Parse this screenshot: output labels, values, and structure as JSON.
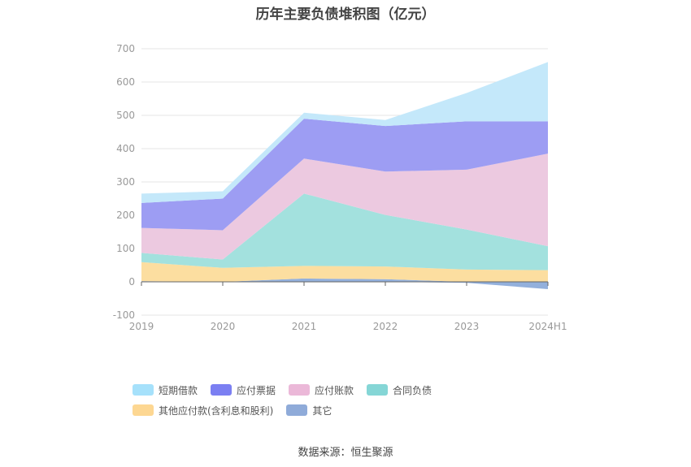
{
  "chart_data": {
    "type": "area",
    "title": "历年主要负债堆积图（亿元）",
    "categories": [
      "2019",
      "2020",
      "2021",
      "2022",
      "2023",
      "2024H1"
    ],
    "ylim": [
      -100,
      700
    ],
    "yticks": [
      -100,
      0,
      100,
      200,
      300,
      400,
      500,
      600,
      700
    ],
    "grid": true,
    "legend_position": "bottom",
    "series": [
      {
        "name": "其它",
        "color": "#93b0dc",
        "values": [
          2,
          0,
          10,
          8,
          -3,
          -22
        ]
      },
      {
        "name": "其他应付款(含利息和股利)",
        "color": "#fcdea0",
        "values": [
          57,
          42,
          38,
          38,
          37,
          35
        ]
      },
      {
        "name": "合同负债",
        "color": "#a3e1de",
        "values": [
          28,
          25,
          217,
          155,
          120,
          72
        ]
      },
      {
        "name": "应付账款",
        "color": "#ecc9e0",
        "values": [
          75,
          88,
          105,
          130,
          180,
          278
        ]
      },
      {
        "name": "应付票据",
        "color": "#9d9df3",
        "values": [
          75,
          95,
          120,
          137,
          145,
          97
        ]
      },
      {
        "name": "短期借款",
        "color": "#c4e8fa",
        "values": [
          28,
          22,
          18,
          18,
          85,
          178
        ]
      }
    ]
  },
  "legend": [
    {
      "label": "短期借款",
      "color": "#a6e1fb"
    },
    {
      "label": "应付票据",
      "color": "#7b7ff2"
    },
    {
      "label": "应付账款",
      "color": "#ebb8d8"
    },
    {
      "label": "合同负债",
      "color": "#85d6d6"
    },
    {
      "label": "其他应付款(含利息和股利)",
      "color": "#fdd792"
    },
    {
      "label": "其它",
      "color": "#8fabd9"
    }
  ],
  "source": "数据来源：恒生聚源"
}
